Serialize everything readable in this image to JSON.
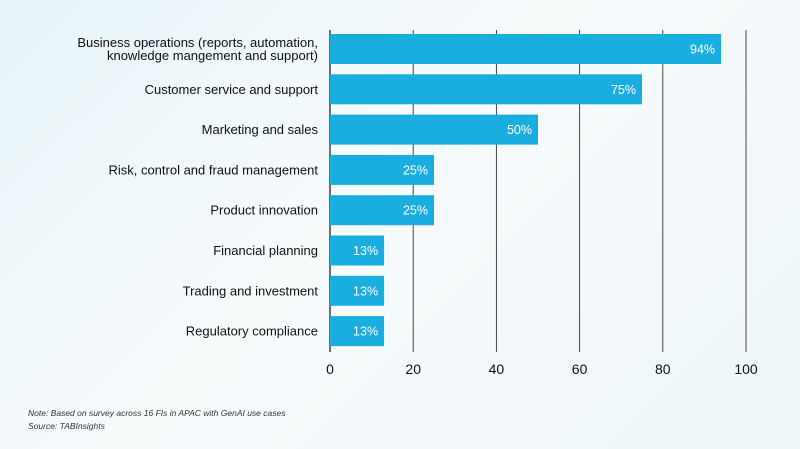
{
  "chart_data": {
    "type": "bar",
    "orientation": "horizontal",
    "categories": [
      "Business operations (reports, automation,|knowledge mangement and support)",
      "Customer service and support",
      "Marketing and sales",
      "Risk, control and fraud management",
      "Product innovation",
      "Financial planning",
      "Trading and investment",
      "Regulatory compliance"
    ],
    "values": [
      94,
      75,
      50,
      25,
      25,
      13,
      13,
      13
    ],
    "data_labels": [
      "94%",
      "75%",
      "50%",
      "25%",
      "25%",
      "13%",
      "13%",
      "13%"
    ],
    "xlim": [
      0,
      100
    ],
    "xticks": [
      0,
      20,
      40,
      60,
      80,
      100
    ],
    "grid": true,
    "bar_color": "#1aaee0",
    "label_color": "#ffffff",
    "text_color": "#111111",
    "grid_color": "#333333"
  },
  "notes": {
    "note": "Note: Based on survey across 16 FIs in APAC with GenAI use cases",
    "source": "Source: TABInsights"
  }
}
